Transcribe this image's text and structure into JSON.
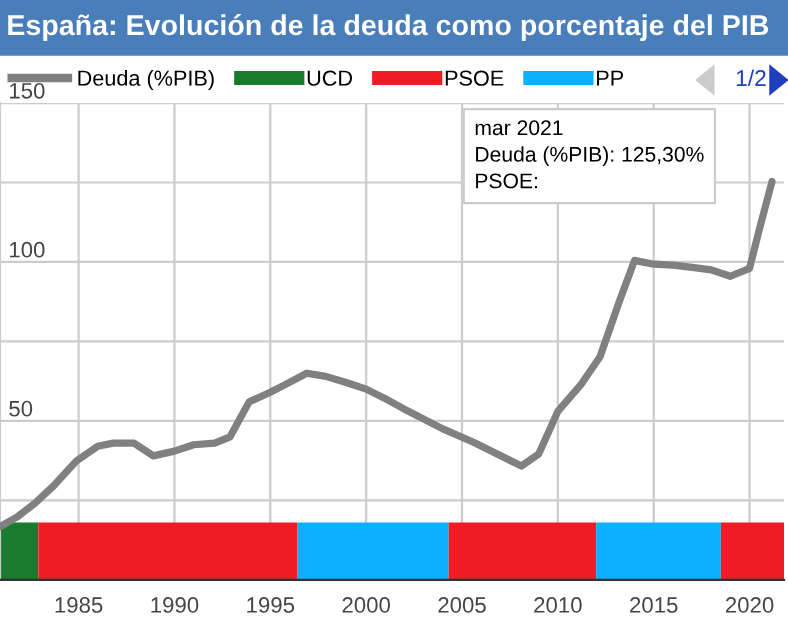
{
  "chart_data": {
    "type": "line",
    "title": "España: Evolución de la deuda como porcentaje del PIB",
    "series": [
      {
        "name": "Deuda (%PIB)",
        "color": "#808080",
        "x": [
          1980.9,
          1981.8,
          1982.7,
          1983.7,
          1984.9,
          1986.0,
          1986.8,
          1987.9,
          1988.9,
          1990.0,
          1991.0,
          1992.1,
          1992.9,
          1993.9,
          1995.0,
          1995.8,
          1996.9,
          1997.9,
          1999.0,
          2000.0,
          2000.9,
          2001.9,
          2004.0,
          2005.6,
          2008.1,
          2009.0,
          2010.0,
          2011.2,
          2012.2,
          2013.2,
          2014.0,
          2015.0,
          2016.0,
          2017.0,
          2018.0,
          2019.0,
          2020.0,
          2020.5,
          2021.17
        ],
        "values": [
          16.7,
          19.8,
          24,
          29.6,
          37.5,
          42,
          43,
          43,
          39,
          40.5,
          42.5,
          43,
          45,
          56,
          59,
          61.5,
          65,
          64,
          62,
          60,
          57.3,
          54,
          47.5,
          43.3,
          35.8,
          39.6,
          53,
          61.4,
          70.2,
          87.5,
          100.5,
          99.3,
          99,
          98.3,
          97.5,
          95.5,
          98,
          110,
          125.3
        ]
      },
      {
        "name": "UCD",
        "color": "#1a7a2e",
        "type": "area",
        "x": [
          1980.9,
          1982.9
        ],
        "values": [
          18,
          18
        ]
      },
      {
        "name": "PSOE",
        "color": "#ee1c25",
        "type": "area",
        "x": [
          1982.9,
          1996.4
        ],
        "values": [
          18,
          18
        ]
      },
      {
        "name": "PP",
        "color": "#0bb0ff",
        "type": "area",
        "x": [
          1996.4,
          2004.3
        ],
        "values": [
          18,
          18
        ]
      },
      {
        "color": "#ee1c25",
        "type": "area",
        "x": [
          2004.3,
          2012.0
        ],
        "values": [
          18,
          18
        ]
      },
      {
        "color": "#0bb0ff",
        "type": "area",
        "x": [
          2012.0,
          2018.5
        ],
        "values": [
          18,
          18
        ]
      },
      {
        "color": "#ee1c25",
        "type": "area",
        "x": [
          2018.5,
          2021.8
        ],
        "values": [
          18,
          18
        ]
      }
    ],
    "xlim": [
      1980.9,
      2021.8
    ],
    "ylim": [
      0,
      150
    ],
    "xticks": [
      1985,
      1990,
      1995,
      2000,
      2005,
      2010,
      2015,
      2020
    ],
    "yticks": [
      {
        "value": 0,
        "label": null
      },
      {
        "value": 25,
        "label": null
      },
      50,
      {
        "value": 75,
        "label": null
      },
      100,
      {
        "value": 125,
        "label": null
      },
      150
    ],
    "grid": true,
    "legend": "top",
    "marker": "none",
    "annotations": [
      "mar 2021\nDeuda (%PIB): 125,30%\nPSOE:",
      "1/2"
    ]
  }
}
